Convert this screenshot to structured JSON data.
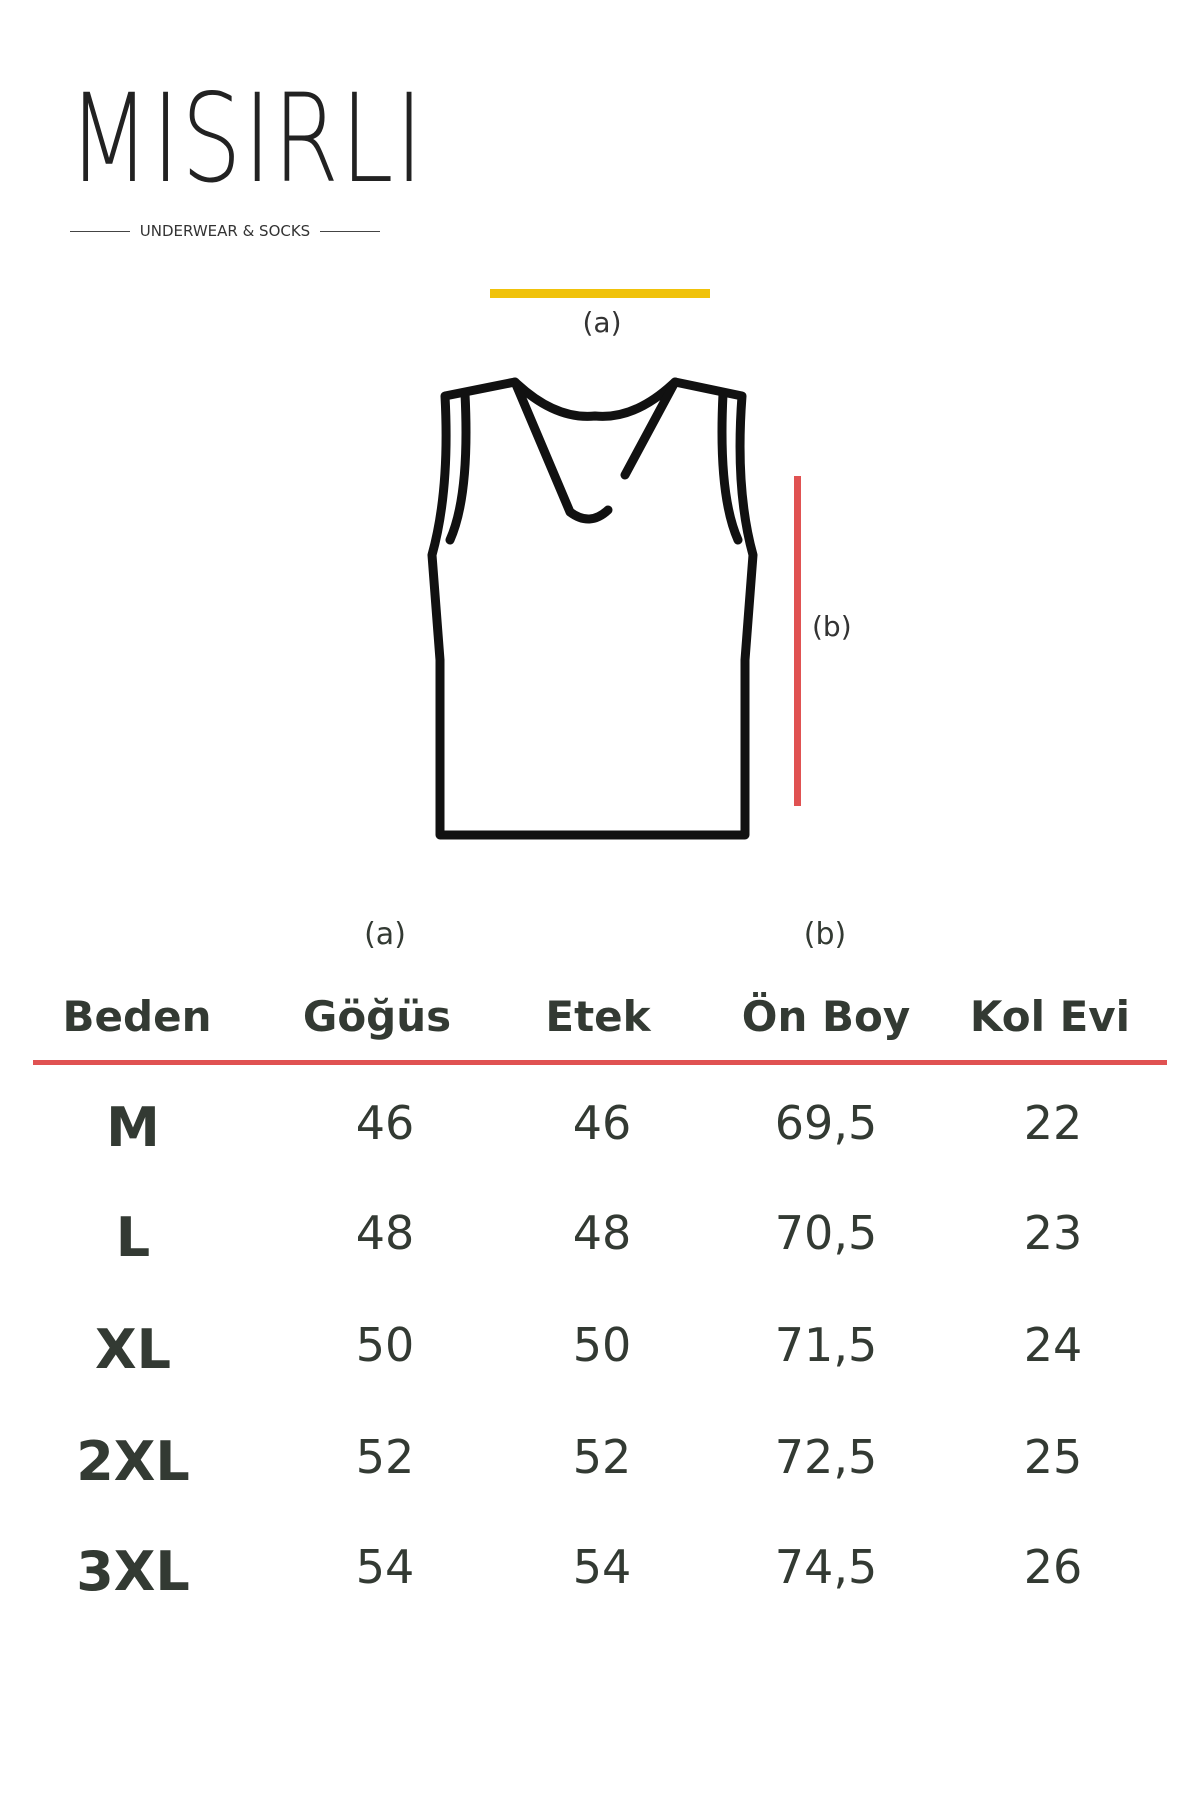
{
  "brand": {
    "name": "MISIRLI",
    "tagline": "UNDERWEAR & SOCKS"
  },
  "diagram": {
    "label_a": "(a)",
    "label_b": "(b)",
    "color_a": "#f0c20a",
    "color_b": "#e05252",
    "icon": "tank-top-icon"
  },
  "table": {
    "header_notes": {
      "chest": "(a)",
      "front_length": "(b)"
    },
    "columns": [
      "Beden",
      "Göğüs",
      "Etek",
      "Ön Boy",
      "Kol Evi"
    ],
    "divider_color": "#e05252",
    "rows": [
      {
        "size": "M",
        "chest": "46",
        "hem": "46",
        "front_length": "69,5",
        "armhole": "22"
      },
      {
        "size": "L",
        "chest": "48",
        "hem": "48",
        "front_length": "70,5",
        "armhole": "23"
      },
      {
        "size": "XL",
        "chest": "50",
        "hem": "50",
        "front_length": "71,5",
        "armhole": "24"
      },
      {
        "size": "2XL",
        "chest": "52",
        "hem": "52",
        "front_length": "72,5",
        "armhole": "25"
      },
      {
        "size": "3XL",
        "chest": "54",
        "hem": "54",
        "front_length": "74,5",
        "armhole": "26"
      }
    ]
  }
}
